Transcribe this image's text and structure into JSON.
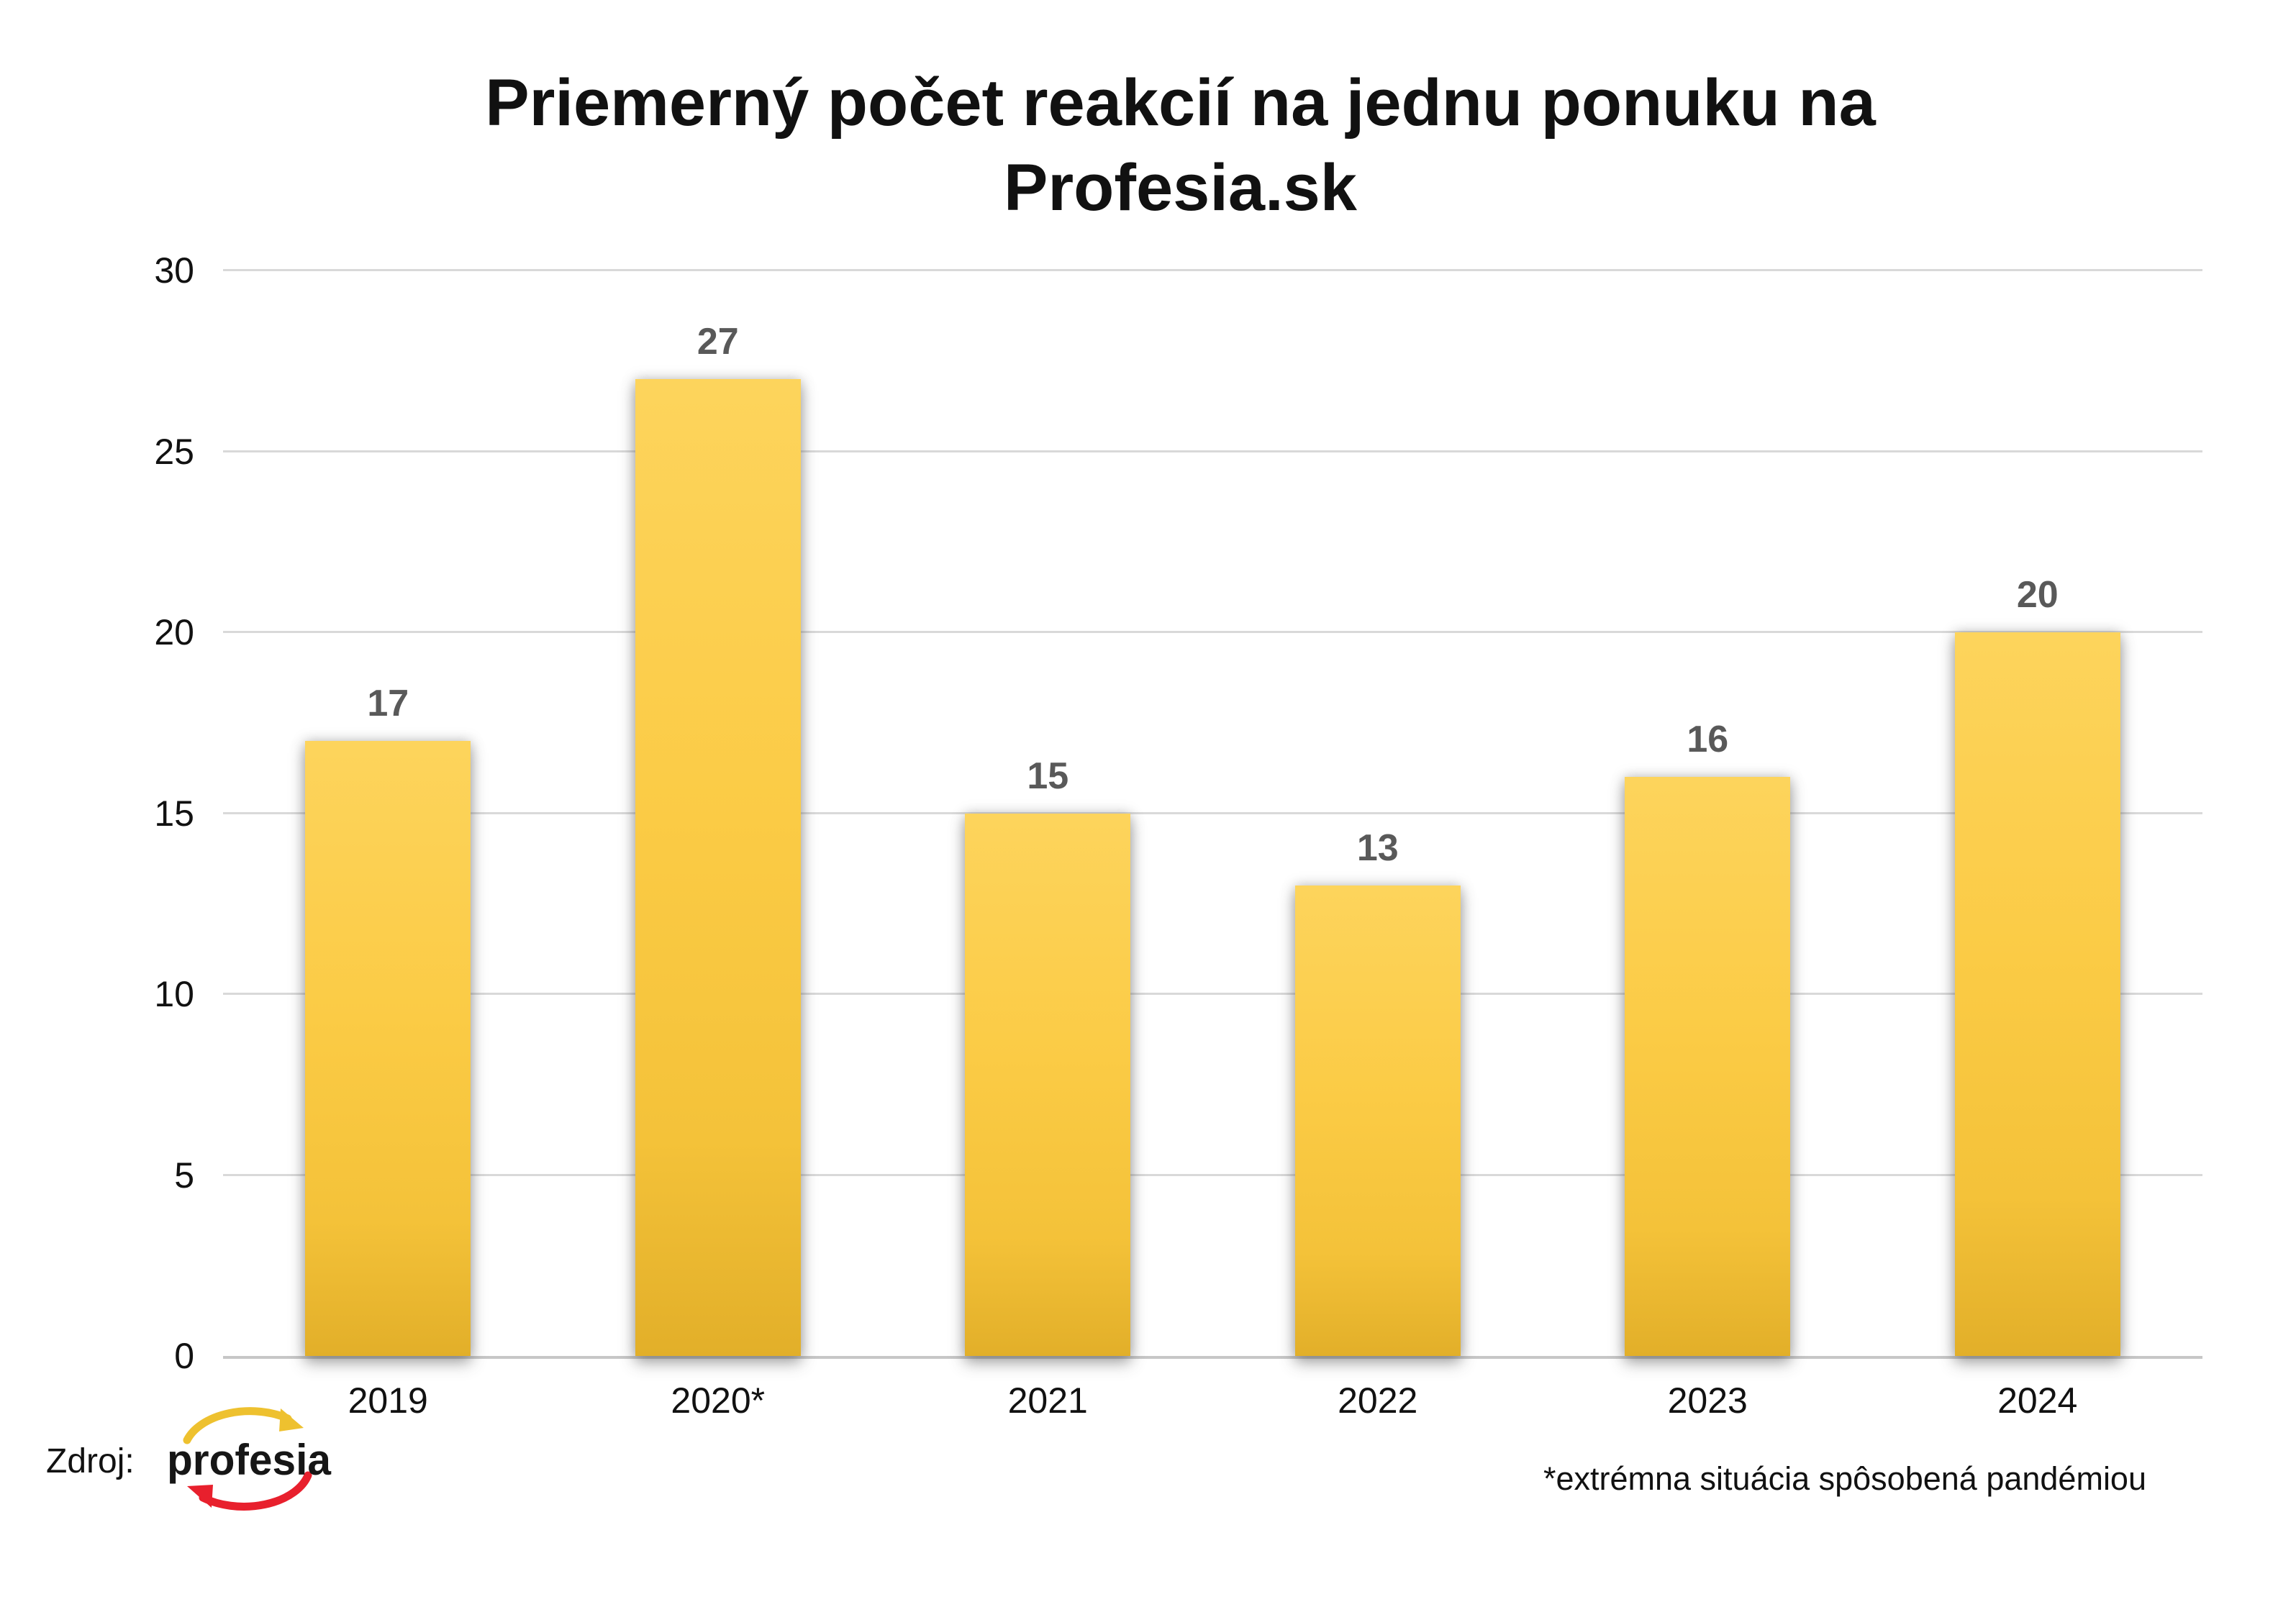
{
  "title": {
    "line1": "Priemerný počet reakcií na jednu ponuku na",
    "line2": "Profesia.sk"
  },
  "chart_data": {
    "type": "bar",
    "title": "Priemerný počet reakcií na jednu ponuku na Profesia.sk",
    "categories": [
      "2019",
      "2020*",
      "2021",
      "2022",
      "2023",
      "2024"
    ],
    "values": [
      17,
      27,
      15,
      13,
      16,
      20
    ],
    "xlabel": "",
    "ylabel": "",
    "ylim": [
      0,
      30
    ],
    "yticks": [
      0,
      5,
      10,
      15,
      20,
      25,
      30
    ],
    "grid": true,
    "legend": "none",
    "bar_fill": "gold gradient",
    "value_labels_shown": true
  },
  "footer": {
    "source_label": "Zdroj:",
    "logo_text": "profesia",
    "note": "*extrémna situácia spôsobená pandémiou"
  },
  "colors": {
    "text": "#111111",
    "bar_top": "#FDD45C",
    "bar_mid": "#FBCB45",
    "bar_bottom": "#E2AF29",
    "value_label": "#595959",
    "gridline": "#D9D9D9",
    "axis_line": "#C7C7C7",
    "logo_text_color": "#161616",
    "logo_yellow": "#EEC12F",
    "logo_red": "#E8202D"
  }
}
